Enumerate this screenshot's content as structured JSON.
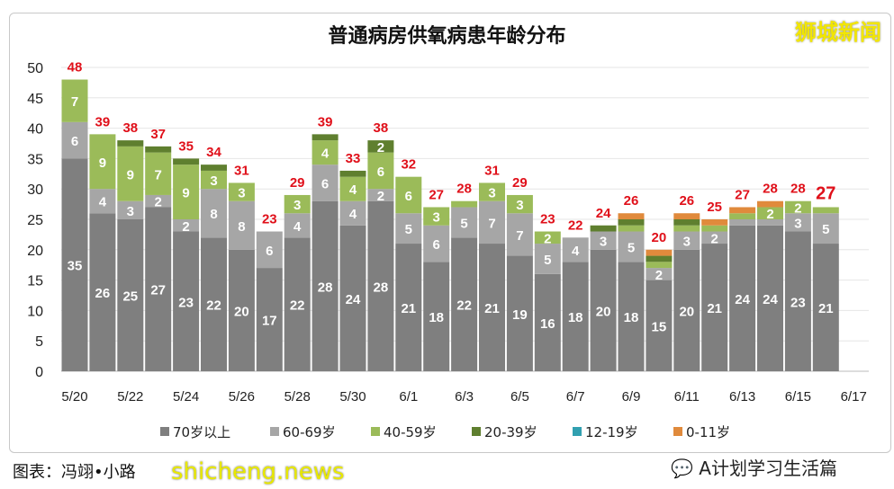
{
  "chart_data": {
    "type": "bar",
    "stacked": true,
    "title": "普通病房供氧病患年龄分布",
    "categories": [
      "5/20",
      "5/21",
      "5/22",
      "5/23",
      "5/24",
      "5/25",
      "5/26",
      "5/27",
      "5/28",
      "5/29",
      "5/30",
      "5/31",
      "6/1",
      "6/2",
      "6/3",
      "6/4",
      "6/5",
      "6/6",
      "6/7",
      "6/8",
      "6/9",
      "6/10",
      "6/11",
      "6/12",
      "6/13",
      "6/14",
      "6/15",
      "6/16"
    ],
    "xtick_labels": [
      "5/20",
      "5/22",
      "5/24",
      "5/26",
      "5/28",
      "5/30",
      "6/1",
      "6/3",
      "6/5",
      "6/7",
      "6/9",
      "6/11",
      "6/13",
      "6/15",
      "6/17"
    ],
    "ylim": [
      0,
      50
    ],
    "yticks": [
      0,
      5,
      10,
      15,
      20,
      25,
      30,
      35,
      40,
      45,
      50
    ],
    "grid": true,
    "legend_position": "bottom",
    "series": [
      {
        "name": "70岁以上",
        "color": "#7f7f7f",
        "values": [
          35,
          26,
          25,
          27,
          23,
          22,
          20,
          17,
          22,
          28,
          24,
          28,
          21,
          18,
          22,
          21,
          19,
          16,
          18,
          20,
          18,
          15,
          20,
          21,
          24,
          24,
          23,
          21
        ]
      },
      {
        "name": "60-69岁",
        "color": "#a6a6a6",
        "values": [
          6,
          4,
          3,
          2,
          2,
          8,
          8,
          6,
          4,
          6,
          4,
          2,
          5,
          6,
          5,
          7,
          7,
          5,
          4,
          3,
          5,
          2,
          3,
          2,
          1,
          1,
          3,
          5
        ]
      },
      {
        "name": "40-59岁",
        "color": "#9bbb59",
        "values": [
          7,
          9,
          9,
          7,
          9,
          3,
          3,
          0,
          3,
          4,
          4,
          6,
          6,
          3,
          1,
          3,
          3,
          2,
          0,
          0,
          1,
          1,
          1,
          1,
          1,
          2,
          2,
          1
        ]
      },
      {
        "name": "20-39岁",
        "color": "#5f7f2f",
        "values": [
          0,
          0,
          1,
          1,
          1,
          1,
          0,
          0,
          0,
          1,
          1,
          2,
          0,
          0,
          0,
          0,
          0,
          0,
          0,
          1,
          1,
          1,
          1,
          0,
          0,
          0,
          0,
          0
        ]
      },
      {
        "name": "12-19岁",
        "color": "#31a0b0",
        "values": [
          0,
          0,
          0,
          0,
          0,
          0,
          0,
          0,
          0,
          0,
          0,
          0,
          0,
          0,
          0,
          0,
          0,
          0,
          0,
          0,
          0,
          0,
          0,
          0,
          0,
          0,
          0,
          0
        ]
      },
      {
        "name": "0-11岁",
        "color": "#e08a3c",
        "values": [
          0,
          0,
          0,
          0,
          0,
          0,
          0,
          0,
          0,
          0,
          0,
          0,
          0,
          0,
          0,
          0,
          0,
          0,
          0,
          0,
          1,
          1,
          1,
          1,
          1,
          1,
          0,
          0
        ]
      }
    ],
    "totals": [
      48,
      39,
      38,
      37,
      35,
      34,
      31,
      23,
      29,
      39,
      33,
      38,
      32,
      27,
      28,
      31,
      29,
      23,
      22,
      24,
      26,
      20,
      26,
      25,
      27,
      28,
      28,
      27
    ],
    "total_label_color": "#e0101a"
  },
  "watermarks": {
    "brand": "狮城新闻",
    "site": "shicheng.news",
    "account": "A计划学习生活篇"
  },
  "credit": "图表：冯翊•小路"
}
